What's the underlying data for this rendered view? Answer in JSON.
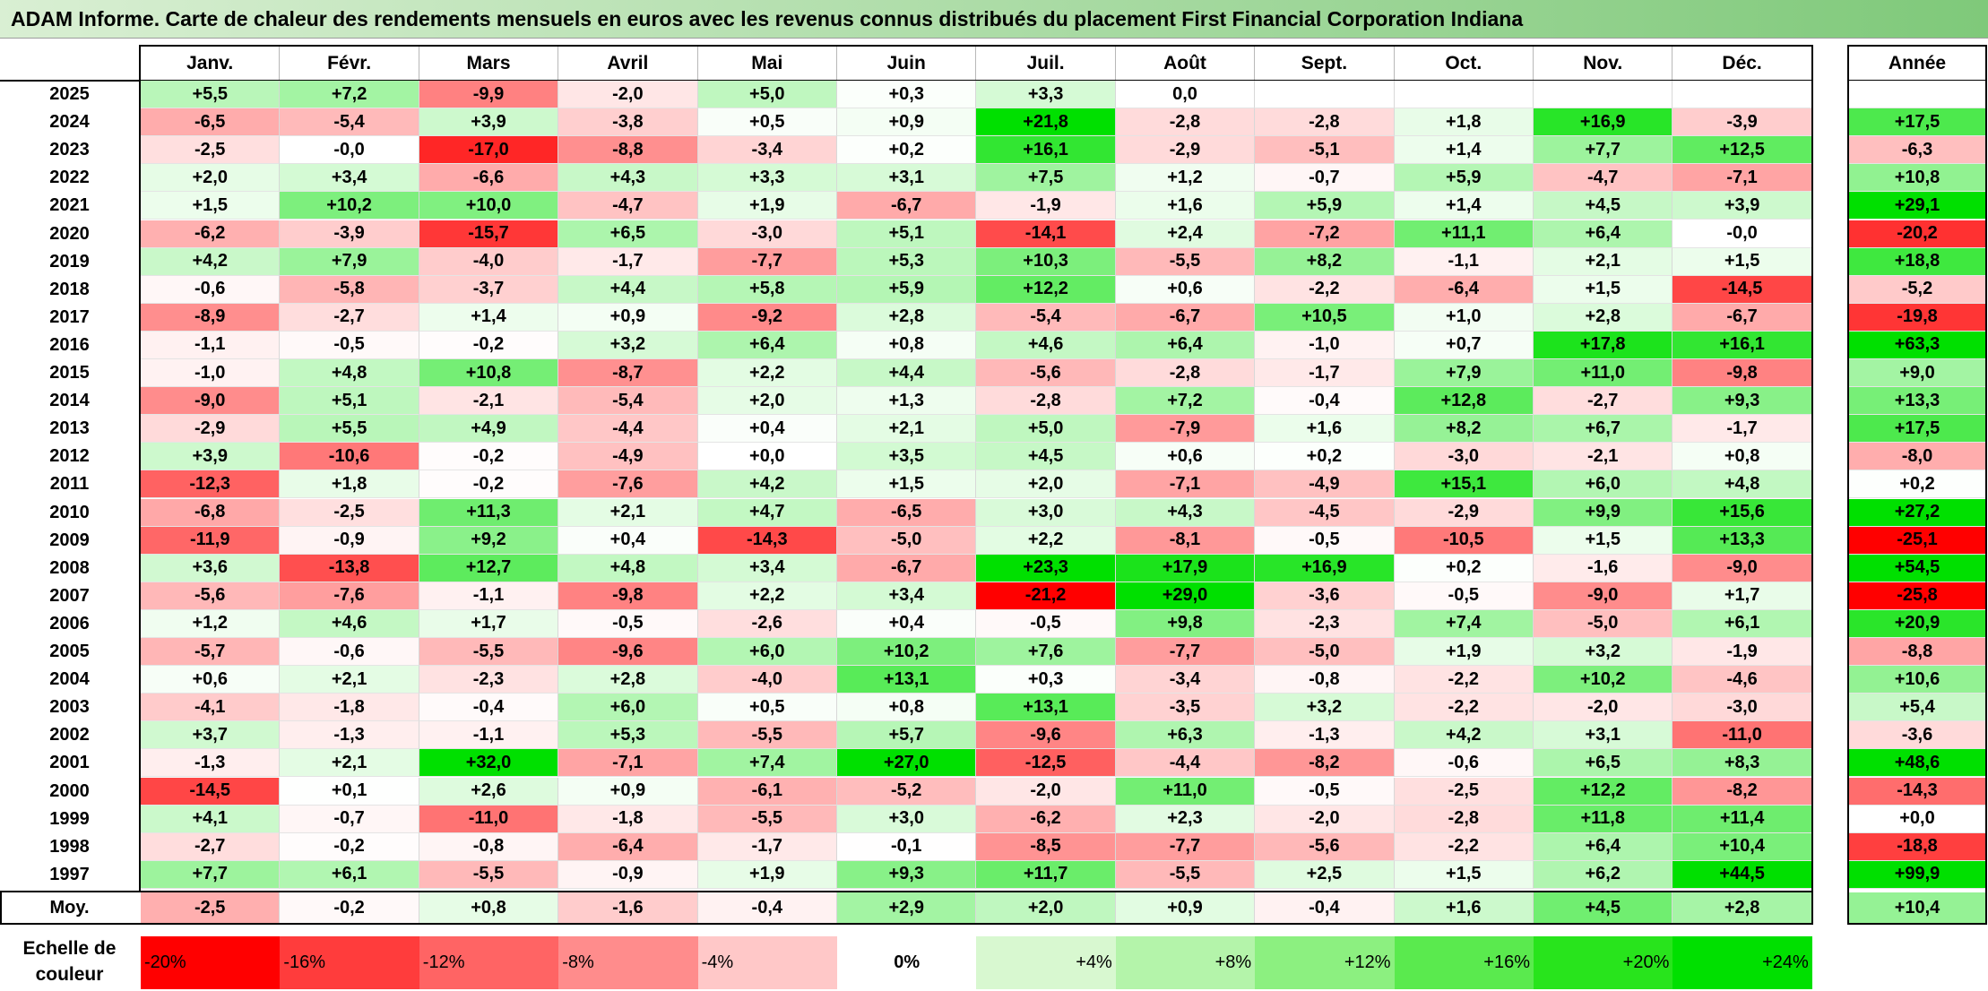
{
  "title": "ADAM Informe. Carte de chaleur des rendements mensuels en euros avec les revenus connus distribués du placement First Financial Corporation Indiana",
  "chart_data": {
    "type": "heatmap",
    "title": "ADAM Informe. Carte de chaleur des rendements mensuels en euros avec les revenus connus distribués du placement First Financial Corporation Indiana",
    "months": [
      "Janv.",
      "Févr.",
      "Mars",
      "Avril",
      "Mai",
      "Juin",
      "Juil.",
      "Août",
      "Sept.",
      "Oct.",
      "Nov.",
      "Déc."
    ],
    "annual_header": "Année",
    "rows": [
      {
        "year": "2025",
        "values": [
          "+5,5",
          "+7,2",
          "-9,9",
          "-2,0",
          "+5,0",
          "+0,3",
          "+3,3",
          "0,0",
          "",
          "",
          "",
          ""
        ],
        "annual": ""
      },
      {
        "year": "2024",
        "values": [
          "-6,5",
          "-5,4",
          "+3,9",
          "-3,8",
          "+0,5",
          "+0,9",
          "+21,8",
          "-2,8",
          "-2,8",
          "+1,8",
          "+16,9",
          "-3,9"
        ],
        "annual": "+17,5"
      },
      {
        "year": "2023",
        "values": [
          "-2,5",
          "-0,0",
          "-17,0",
          "-8,8",
          "-3,4",
          "+0,2",
          "+16,1",
          "-2,9",
          "-5,1",
          "+1,4",
          "+7,7",
          "+12,5"
        ],
        "annual": "-6,3"
      },
      {
        "year": "2022",
        "values": [
          "+2,0",
          "+3,4",
          "-6,6",
          "+4,3",
          "+3,3",
          "+3,1",
          "+7,5",
          "+1,2",
          "-0,7",
          "+5,9",
          "-4,7",
          "-7,1"
        ],
        "annual": "+10,8"
      },
      {
        "year": "2021",
        "values": [
          "+1,5",
          "+10,2",
          "+10,0",
          "-4,7",
          "+1,9",
          "-6,7",
          "-1,9",
          "+1,6",
          "+5,9",
          "+1,4",
          "+4,5",
          "+3,9"
        ],
        "annual": "+29,1"
      },
      {
        "year": "2020",
        "values": [
          "-6,2",
          "-3,9",
          "-15,7",
          "+6,5",
          "-3,0",
          "+5,1",
          "-14,1",
          "+2,4",
          "-7,2",
          "+11,1",
          "+6,4",
          "-0,0"
        ],
        "annual": "-20,2"
      },
      {
        "year": "2019",
        "values": [
          "+4,2",
          "+7,9",
          "-4,0",
          "-1,7",
          "-7,7",
          "+5,3",
          "+10,3",
          "-5,5",
          "+8,2",
          "-1,1",
          "+2,1",
          "+1,5"
        ],
        "annual": "+18,8"
      },
      {
        "year": "2018",
        "values": [
          "-0,6",
          "-5,8",
          "-3,7",
          "+4,4",
          "+5,8",
          "+5,9",
          "+12,2",
          "+0,6",
          "-2,2",
          "-6,4",
          "+1,5",
          "-14,5"
        ],
        "annual": "-5,2"
      },
      {
        "year": "2017",
        "values": [
          "-8,9",
          "-2,7",
          "+1,4",
          "+0,9",
          "-9,2",
          "+2,8",
          "-5,4",
          "-6,7",
          "+10,5",
          "+1,0",
          "+2,8",
          "-6,7"
        ],
        "annual": "-19,8"
      },
      {
        "year": "2016",
        "values": [
          "-1,1",
          "-0,5",
          "-0,2",
          "+3,2",
          "+6,4",
          "+0,8",
          "+4,6",
          "+6,4",
          "-1,0",
          "+0,7",
          "+17,8",
          "+16,1"
        ],
        "annual": "+63,3"
      },
      {
        "year": "2015",
        "values": [
          "-1,0",
          "+4,8",
          "+10,8",
          "-8,7",
          "+2,2",
          "+4,4",
          "-5,6",
          "-2,8",
          "-1,7",
          "+7,9",
          "+11,0",
          "-9,8"
        ],
        "annual": "+9,0"
      },
      {
        "year": "2014",
        "values": [
          "-9,0",
          "+5,1",
          "-2,1",
          "-5,4",
          "+2,0",
          "+1,3",
          "-2,8",
          "+7,2",
          "-0,4",
          "+12,8",
          "-2,7",
          "+9,3"
        ],
        "annual": "+13,3"
      },
      {
        "year": "2013",
        "values": [
          "-2,9",
          "+5,5",
          "+4,9",
          "-4,4",
          "+0,4",
          "+2,1",
          "+5,0",
          "-7,9",
          "+1,6",
          "+8,2",
          "+6,7",
          "-1,7"
        ],
        "annual": "+17,5"
      },
      {
        "year": "2012",
        "values": [
          "+3,9",
          "-10,6",
          "-0,2",
          "-4,9",
          "+0,0",
          "+3,5",
          "+4,5",
          "+0,6",
          "+0,2",
          "-3,0",
          "-2,1",
          "+0,8"
        ],
        "annual": "-8,0"
      },
      {
        "year": "2011",
        "values": [
          "-12,3",
          "+1,8",
          "-0,2",
          "-7,6",
          "+4,2",
          "+1,5",
          "+2,0",
          "-7,1",
          "-4,9",
          "+15,1",
          "+6,0",
          "+4,8"
        ],
        "annual": "+0,2"
      },
      {
        "year": "2010",
        "values": [
          "-6,8",
          "-2,5",
          "+11,3",
          "+2,1",
          "+4,7",
          "-6,5",
          "+3,0",
          "+4,3",
          "-4,5",
          "-2,9",
          "+9,9",
          "+15,6"
        ],
        "annual": "+27,2"
      },
      {
        "year": "2009",
        "values": [
          "-11,9",
          "-0,9",
          "+9,2",
          "+0,4",
          "-14,3",
          "-5,0",
          "+2,2",
          "-8,1",
          "-0,5",
          "-10,5",
          "+1,5",
          "+13,3"
        ],
        "annual": "-25,1"
      },
      {
        "year": "2008",
        "values": [
          "+3,6",
          "-13,8",
          "+12,7",
          "+4,8",
          "+3,4",
          "-6,7",
          "+23,3",
          "+17,9",
          "+16,9",
          "+0,2",
          "-1,6",
          "-9,0"
        ],
        "annual": "+54,5"
      },
      {
        "year": "2007",
        "values": [
          "-5,6",
          "-7,6",
          "-1,1",
          "-9,8",
          "+2,2",
          "+3,4",
          "-21,2",
          "+29,0",
          "-3,6",
          "-0,5",
          "-9,0",
          "+1,7"
        ],
        "annual": "-25,8"
      },
      {
        "year": "2006",
        "values": [
          "+1,2",
          "+4,6",
          "+1,7",
          "-0,5",
          "-2,6",
          "+0,4",
          "-0,5",
          "+9,8",
          "-2,3",
          "+7,4",
          "-5,0",
          "+6,1"
        ],
        "annual": "+20,9"
      },
      {
        "year": "2005",
        "values": [
          "-5,7",
          "-0,6",
          "-5,5",
          "-9,6",
          "+6,0",
          "+10,2",
          "+7,6",
          "-7,7",
          "-5,0",
          "+1,9",
          "+3,2",
          "-1,9"
        ],
        "annual": "-8,8"
      },
      {
        "year": "2004",
        "values": [
          "+0,6",
          "+2,1",
          "-2,3",
          "+2,8",
          "-4,0",
          "+13,1",
          "+0,3",
          "-3,4",
          "-0,8",
          "-2,2",
          "+10,2",
          "-4,6"
        ],
        "annual": "+10,6"
      },
      {
        "year": "2003",
        "values": [
          "-4,1",
          "-1,8",
          "-0,4",
          "+6,0",
          "+0,5",
          "+0,8",
          "+13,1",
          "-3,5",
          "+3,2",
          "-2,2",
          "-2,0",
          "-3,0"
        ],
        "annual": "+5,4"
      },
      {
        "year": "2002",
        "values": [
          "+3,7",
          "-1,3",
          "-1,1",
          "+5,3",
          "-5,5",
          "+5,7",
          "-9,6",
          "+6,3",
          "-1,3",
          "+4,2",
          "+3,1",
          "-11,0"
        ],
        "annual": "-3,6"
      },
      {
        "year": "2001",
        "values": [
          "-1,3",
          "+2,1",
          "+32,0",
          "-7,1",
          "+7,4",
          "+27,0",
          "-12,5",
          "-4,4",
          "-8,2",
          "-0,6",
          "+6,5",
          "+8,3"
        ],
        "annual": "+48,6"
      },
      {
        "year": "2000",
        "values": [
          "-14,5",
          "+0,1",
          "+2,6",
          "+0,9",
          "-6,1",
          "-5,2",
          "-2,0",
          "+11,0",
          "-0,5",
          "-2,5",
          "+12,2",
          "-8,2"
        ],
        "annual": "-14,3"
      },
      {
        "year": "1999",
        "values": [
          "+4,1",
          "-0,7",
          "-11,0",
          "-1,8",
          "-5,5",
          "+3,0",
          "-6,2",
          "+2,3",
          "-2,0",
          "-2,8",
          "+11,8",
          "+11,4"
        ],
        "annual": "+0,0"
      },
      {
        "year": "1998",
        "values": [
          "-2,7",
          "-0,2",
          "-0,8",
          "-6,4",
          "-1,7",
          "-0,1",
          "-8,5",
          "-7,7",
          "-5,6",
          "-2,2",
          "+6,4",
          "+10,4"
        ],
        "annual": "-18,8"
      },
      {
        "year": "1997",
        "values": [
          "+7,7",
          "+6,1",
          "-5,5",
          "-0,9",
          "+1,9",
          "+9,3",
          "+11,7",
          "-5,5",
          "+2,5",
          "+1,5",
          "+6,2",
          "+44,5"
        ],
        "annual": "+99,9"
      }
    ],
    "mean_row": {
      "label": "Moy.",
      "values": [
        "-2,5",
        "-0,2",
        "+0,8",
        "-1,6",
        "-0,4",
        "+2,9",
        "+2,0",
        "+0,9",
        "-0,4",
        "+1,6",
        "+4,5",
        "+2,8"
      ],
      "annual": "+10,4"
    },
    "color_scale": {
      "label": "Echelle de couleur",
      "stops": [
        "-20%",
        "-16%",
        "-12%",
        "-8%",
        "-4%",
        "0%",
        "+4%",
        "+8%",
        "+12%",
        "+16%",
        "+20%",
        "+24%"
      ],
      "colors": [
        "#ff0000",
        "#ff3c3c",
        "#ff6464",
        "#ff8c8c",
        "#ffc8c8",
        "#ffffff",
        "#d8f8d0",
        "#b4f4aa",
        "#8cf080",
        "#5aea4e",
        "#28e41c",
        "#00e000"
      ],
      "negative_color": "#ff0000",
      "positive_color": "#00e000",
      "neutral_color": "#ffffff"
    }
  }
}
